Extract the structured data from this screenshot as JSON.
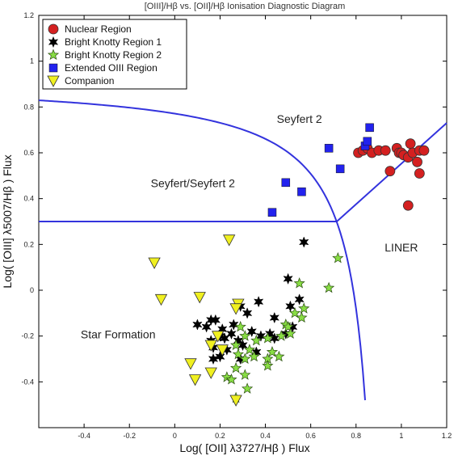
{
  "chart_data": {
    "type": "scatter",
    "title": "[OIII]/Hβ vs. [OII]/Hβ Ionisation Diagnostic Diagram",
    "xlabel": "Log( [OII] λ3727/Hβ ) Flux",
    "ylabel": "Log( [OIII] λ5007/Hβ ) Flux",
    "xlim": [
      -0.6,
      1.2
    ],
    "ylim": [
      -0.6,
      1.2
    ],
    "x_ticks": [
      "-0.4",
      "-0.2",
      "0",
      "0.2",
      "0.4",
      "0.6",
      "0.8",
      "1",
      "1.2"
    ],
    "y_ticks": [
      "-0.4",
      "-0.2",
      "0",
      "0.2",
      "0.4",
      "0.6",
      "0.8",
      "1",
      "1.2"
    ],
    "grid": false,
    "legend_position": "top-left",
    "region_labels": [
      {
        "text": "Seyfert 2",
        "x": 0.55,
        "y": 0.73
      },
      {
        "text": "Seyfert/Seyfert 2",
        "x": 0.08,
        "y": 0.45
      },
      {
        "text": "LINER",
        "x": 1.0,
        "y": 0.17
      },
      {
        "text": "Star Formation",
        "x": -0.25,
        "y": -0.21
      }
    ],
    "boundary_color": "#3333dd",
    "series": [
      {
        "name": "Nuclear Region",
        "marker": "circle",
        "color": "#d42020",
        "points": [
          [
            0.81,
            0.6
          ],
          [
            0.83,
            0.61
          ],
          [
            0.85,
            0.62
          ],
          [
            0.87,
            0.6
          ],
          [
            0.9,
            0.61
          ],
          [
            0.93,
            0.61
          ],
          [
            0.98,
            0.62
          ],
          [
            0.99,
            0.6
          ],
          [
            1.0,
            0.6
          ],
          [
            1.01,
            0.59
          ],
          [
            1.03,
            0.58
          ],
          [
            1.04,
            0.64
          ],
          [
            1.05,
            0.6
          ],
          [
            1.07,
            0.56
          ],
          [
            1.08,
            0.61
          ],
          [
            1.1,
            0.61
          ],
          [
            1.08,
            0.51
          ],
          [
            0.95,
            0.52
          ],
          [
            1.03,
            0.37
          ]
        ]
      },
      {
        "name": "Bright Knotty Region 1",
        "marker": "star6",
        "color": "#000000",
        "points": [
          [
            0.57,
            0.21
          ],
          [
            0.5,
            0.05
          ],
          [
            0.16,
            -0.13
          ],
          [
            0.18,
            -0.13
          ],
          [
            0.1,
            -0.15
          ],
          [
            0.14,
            -0.16
          ],
          [
            0.21,
            -0.17
          ],
          [
            0.29,
            -0.07
          ],
          [
            0.32,
            -0.1
          ],
          [
            0.37,
            -0.05
          ],
          [
            0.26,
            -0.15
          ],
          [
            0.25,
            -0.19
          ],
          [
            0.2,
            -0.2
          ],
          [
            0.16,
            -0.22
          ],
          [
            0.22,
            -0.21
          ],
          [
            0.28,
            -0.22
          ],
          [
            0.34,
            -0.18
          ],
          [
            0.42,
            -0.19
          ],
          [
            0.44,
            -0.12
          ],
          [
            0.51,
            -0.07
          ],
          [
            0.52,
            -0.16
          ],
          [
            0.55,
            -0.04
          ],
          [
            0.49,
            -0.19
          ],
          [
            0.38,
            -0.2
          ],
          [
            0.3,
            -0.24
          ],
          [
            0.23,
            -0.26
          ],
          [
            0.17,
            -0.25
          ],
          [
            0.2,
            -0.29
          ],
          [
            0.17,
            -0.3
          ],
          [
            0.29,
            -0.3
          ],
          [
            0.36,
            -0.27
          ],
          [
            0.44,
            -0.21
          ]
        ]
      },
      {
        "name": "Bright Knotty Region 2",
        "marker": "star5",
        "color": "#88dd44",
        "points": [
          [
            0.72,
            0.14
          ],
          [
            0.68,
            0.01
          ],
          [
            0.55,
            0.03
          ],
          [
            0.57,
            -0.08
          ],
          [
            0.53,
            -0.1
          ],
          [
            0.56,
            -0.12
          ],
          [
            0.49,
            -0.15
          ],
          [
            0.5,
            -0.16
          ],
          [
            0.51,
            -0.19
          ],
          [
            0.47,
            -0.2
          ],
          [
            0.41,
            -0.21
          ],
          [
            0.36,
            -0.22
          ],
          [
            0.31,
            -0.2
          ],
          [
            0.29,
            -0.16
          ],
          [
            0.33,
            -0.26
          ],
          [
            0.27,
            -0.24
          ],
          [
            0.28,
            -0.28
          ],
          [
            0.31,
            -0.3
          ],
          [
            0.35,
            -0.29
          ],
          [
            0.41,
            -0.3
          ],
          [
            0.43,
            -0.27
          ],
          [
            0.46,
            -0.29
          ],
          [
            0.41,
            -0.33
          ],
          [
            0.23,
            -0.38
          ],
          [
            0.25,
            -0.39
          ],
          [
            0.31,
            -0.37
          ],
          [
            0.27,
            -0.34
          ],
          [
            0.32,
            -0.43
          ],
          [
            0.27,
            -0.47
          ]
        ]
      },
      {
        "name": "Extended OIII Region",
        "marker": "square",
        "color": "#2222ee",
        "points": [
          [
            0.43,
            0.34
          ],
          [
            0.49,
            0.47
          ],
          [
            0.56,
            0.43
          ],
          [
            0.68,
            0.62
          ],
          [
            0.73,
            0.53
          ],
          [
            0.84,
            0.63
          ],
          [
            0.85,
            0.65
          ],
          [
            0.86,
            0.71
          ]
        ]
      },
      {
        "name": "Companion",
        "marker": "triangle-down",
        "color": "#f0f020",
        "points": [
          [
            0.24,
            0.22
          ],
          [
            -0.09,
            0.12
          ],
          [
            -0.06,
            -0.04
          ],
          [
            0.11,
            -0.03
          ],
          [
            0.28,
            -0.06
          ],
          [
            0.27,
            -0.08
          ],
          [
            0.19,
            -0.2
          ],
          [
            0.16,
            -0.24
          ],
          [
            0.21,
            -0.26
          ],
          [
            0.07,
            -0.32
          ],
          [
            0.16,
            -0.36
          ],
          [
            0.09,
            -0.39
          ],
          [
            0.27,
            -0.48
          ]
        ]
      }
    ]
  }
}
